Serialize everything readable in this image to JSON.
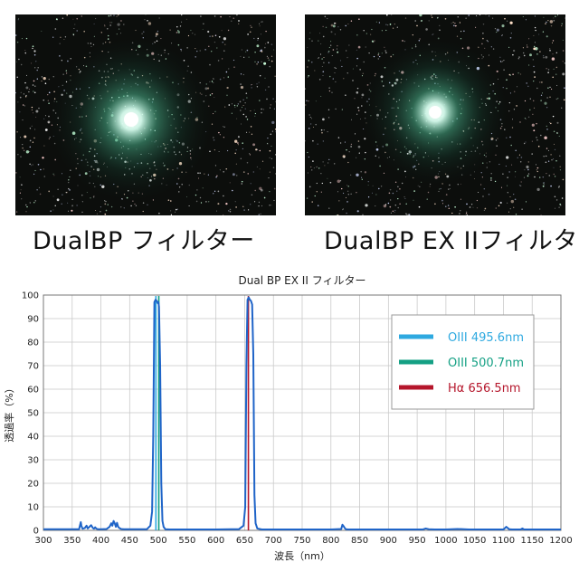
{
  "photos": [
    {
      "caption": "DualBP フィルター"
    },
    {
      "caption": "DualBP EX IIフィルター"
    }
  ],
  "chart_data": {
    "type": "line",
    "title": "Dual BP EX II フィルター",
    "xlabel": "波長（nm）",
    "ylabel": "透過率（%）",
    "xlim": [
      300,
      1200
    ],
    "ylim": [
      0,
      100
    ],
    "xticks": [
      300,
      350,
      400,
      450,
      500,
      550,
      600,
      650,
      700,
      750,
      800,
      850,
      900,
      950,
      1000,
      1050,
      1100,
      1150,
      1200
    ],
    "yticks": [
      0,
      10,
      20,
      30,
      40,
      50,
      60,
      70,
      80,
      90,
      100
    ],
    "grid": true,
    "legend_position": "top-right",
    "series": [
      {
        "kind": "transmission",
        "color": "#1f64c8",
        "x": [
          300,
          362,
          363,
          365,
          366,
          368,
          372,
          375,
          377,
          380,
          383,
          386,
          388,
          390,
          392,
          395,
          400,
          410,
          415,
          418,
          420,
          422,
          424,
          426,
          428,
          430,
          432,
          435,
          440,
          480,
          486,
          489,
          491,
          493,
          495,
          497,
          499,
          500,
          501,
          503,
          505,
          507,
          509,
          512,
          520,
          600,
          640,
          648,
          651,
          653,
          655,
          657,
          659,
          661,
          663,
          665,
          667,
          669,
          672,
          680,
          800,
          818,
          820,
          822,
          824,
          826,
          830,
          900,
          960,
          965,
          970,
          980,
          1000,
          1020,
          1040,
          1100,
          1105,
          1110,
          1115,
          1130,
          1133,
          1136,
          1200
        ],
        "y": [
          0.5,
          0.5,
          1.5,
          3.5,
          2,
          0.7,
          1,
          2,
          0.8,
          1.5,
          2.2,
          1,
          0.7,
          1.3,
          0.7,
          0.5,
          0.5,
          0.6,
          1.5,
          3,
          2,
          4,
          3,
          1.5,
          3.2,
          1.5,
          1,
          0.6,
          0.5,
          0.5,
          2,
          8,
          40,
          97,
          98,
          97.5,
          96.5,
          97,
          95,
          70,
          20,
          4,
          1.5,
          0.5,
          0.4,
          0.4,
          0.5,
          2,
          10,
          70,
          98,
          99,
          98,
          97.5,
          96,
          75,
          15,
          3,
          0.8,
          0.4,
          0.4,
          0.6,
          2.4,
          1.8,
          1,
          0.5,
          0.4,
          0.4,
          0.4,
          0.8,
          0.5,
          0.4,
          0.4,
          0.6,
          0.4,
          0.4,
          1.5,
          0.5,
          0.4,
          0.4,
          0.8,
          0.4,
          0.4
        ]
      },
      {
        "kind": "line-marker",
        "name": "OIII 495.6nm",
        "color": "#2ea9e0",
        "x": 495.6
      },
      {
        "kind": "line-marker",
        "name": "OIII 500.7nm",
        "color": "#14a084",
        "x": 500.7
      },
      {
        "kind": "line-marker",
        "name": "Hα 656.5nm",
        "color": "#b5162b",
        "x": 656.5
      }
    ]
  }
}
